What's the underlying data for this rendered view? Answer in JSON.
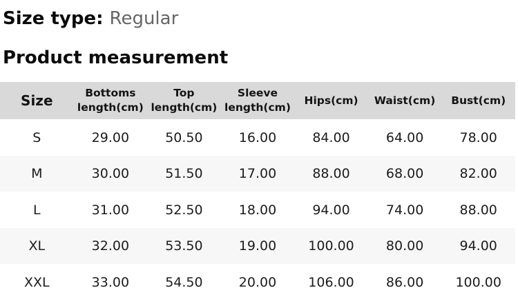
{
  "page": {
    "size_type_label": "Size type:",
    "size_type_value": "Regular",
    "section_title": "Product measurement"
  },
  "table": {
    "columns": [
      "Size",
      "Bottoms length(cm)",
      "Top length(cm)",
      "Sleeve length(cm)",
      "Hips(cm)",
      "Waist(cm)",
      "Bust(cm)"
    ],
    "rows": [
      {
        "size": "S",
        "values": [
          "29.00",
          "50.50",
          "16.00",
          "84.00",
          "64.00",
          "78.00"
        ]
      },
      {
        "size": "M",
        "values": [
          "30.00",
          "51.50",
          "17.00",
          "88.00",
          "68.00",
          "82.00"
        ]
      },
      {
        "size": "L",
        "values": [
          "31.00",
          "52.50",
          "18.00",
          "94.00",
          "74.00",
          "88.00"
        ]
      },
      {
        "size": "XL",
        "values": [
          "32.00",
          "53.50",
          "19.00",
          "100.00",
          "80.00",
          "94.00"
        ]
      },
      {
        "size": "XXL",
        "values": [
          "33.00",
          "54.50",
          "20.00",
          "106.00",
          "86.00",
          "100.00"
        ]
      }
    ]
  },
  "colors": {
    "header_bg": "#d9d9d9",
    "stripe_bg": "#f7f7f7",
    "heading_text": "#0b0b0b",
    "muted_text": "#666666",
    "body_text": "#1c1c1c"
  }
}
